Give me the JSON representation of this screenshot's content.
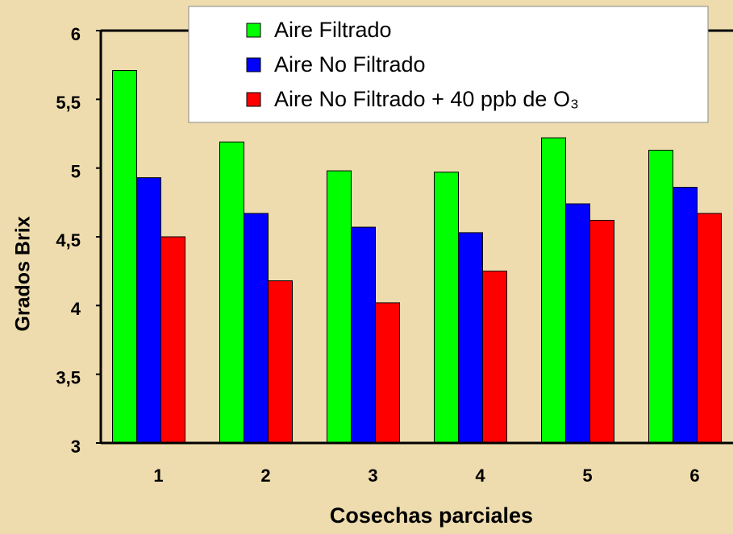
{
  "chart_data": {
    "type": "bar",
    "x_label": "Cosechas parciales",
    "y_label": "Grados Brix",
    "categories": [
      "1",
      "2",
      "3",
      "4",
      "5",
      "6"
    ],
    "series": [
      {
        "name": "Aire Filtrado",
        "color": "#00ff00",
        "values": [
          5.71,
          5.19,
          4.98,
          4.97,
          5.22,
          5.13
        ]
      },
      {
        "name": "Aire No Filtrado",
        "color": "#0000ff",
        "values": [
          4.93,
          4.67,
          4.57,
          4.53,
          4.74,
          4.86
        ]
      },
      {
        "name": "Aire No Filtrado + 40 ppb de O₃",
        "color": "#ff0000",
        "values": [
          4.5,
          4.18,
          4.02,
          4.25,
          4.62,
          4.67
        ]
      }
    ],
    "ylim": [
      3,
      6
    ],
    "yticks": [
      3,
      {
        "value": 3.5,
        "label": "3,5"
      },
      4,
      {
        "value": 4.5,
        "label": "4,5"
      },
      5,
      {
        "value": 5.5,
        "label": "5,5"
      },
      6
    ],
    "legend": "top-right"
  }
}
